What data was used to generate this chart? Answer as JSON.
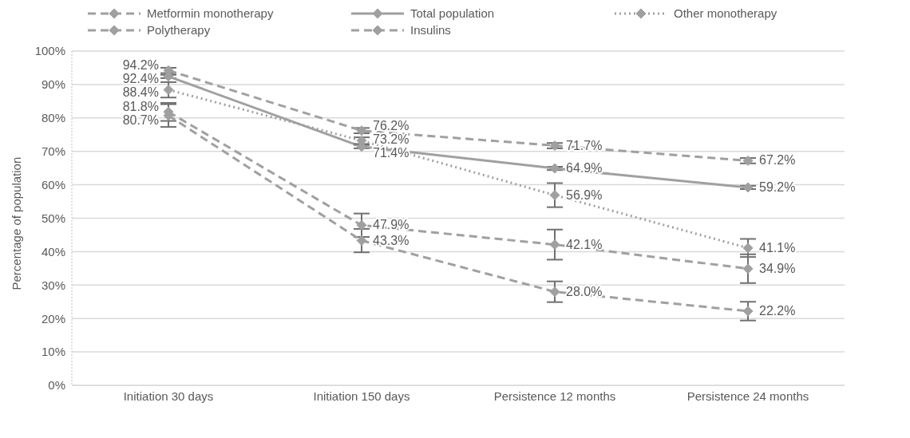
{
  "chart_data": {
    "type": "line",
    "ylabel": "Percentage of population",
    "categories": [
      "Initiation 30 days",
      "Initiation 150 days",
      "Persistence 12 months",
      "Persistence 24 months"
    ],
    "series": [
      {
        "name": "Metformin monotherapy",
        "color": "#a0a0a0",
        "line_style": "dashed",
        "values": [
          94.2,
          76.2,
          71.7,
          67.2
        ],
        "errors": [
          0.8,
          0.8,
          0.8,
          0.8
        ],
        "value_labels": [
          "94.2%",
          "76.2%",
          "71.7%",
          "67.2%"
        ]
      },
      {
        "name": "Total population",
        "color": "#a0a0a0",
        "line_style": "solid",
        "values": [
          92.4,
          71.4,
          64.9,
          59.2
        ],
        "errors": [
          0.5,
          0.5,
          0.5,
          0.5
        ],
        "value_labels": [
          "92.4%",
          "71.4%",
          "64.9%",
          "59.2%"
        ]
      },
      {
        "name": "Other monotherapy",
        "color": "#a0a0a0",
        "line_style": "dotted",
        "values": [
          88.4,
          73.2,
          56.9,
          41.1
        ],
        "errors": [
          2.3,
          1,
          3.6,
          2.7
        ],
        "value_labels": [
          "88.4%",
          "73.2%",
          "56.9%",
          "41.1%"
        ]
      },
      {
        "name": "Polytherapy",
        "color": "#a0a0a0",
        "line_style": "dashed",
        "values": [
          81.8,
          47.9,
          42.1,
          34.9
        ],
        "errors": [
          2.7,
          3.5,
          4.5,
          4.3
        ],
        "value_labels": [
          "81.8%",
          "47.9%",
          "42.1%",
          "34.9%"
        ]
      },
      {
        "name": "Insulins",
        "color": "#a0a0a0",
        "line_style": "dashed",
        "values": [
          80.7,
          43.3,
          28.0,
          22.2
        ],
        "errors": [
          3.4,
          3.5,
          3.1,
          2.8
        ],
        "value_labels": [
          "80.7%",
          "43.3%",
          "28.0%",
          "22.2%"
        ]
      }
    ],
    "ylim": [
      0,
      100
    ],
    "yticks": [
      {
        "value": 0,
        "label": "0%"
      },
      {
        "value": 10,
        "label": "10%"
      },
      {
        "value": 20,
        "label": "20%"
      },
      {
        "value": 30,
        "label": "30%"
      },
      {
        "value": 40,
        "label": "40%"
      },
      {
        "value": 50,
        "label": "50%"
      },
      {
        "value": 60,
        "label": "60%"
      },
      {
        "value": 70,
        "label": "70%"
      },
      {
        "value": 80,
        "label": "80%"
      },
      {
        "value": 90,
        "label": "90%"
      },
      {
        "value": 100,
        "label": "100%"
      }
    ],
    "grid": "y",
    "legend": "top left",
    "marker": "diamond"
  }
}
